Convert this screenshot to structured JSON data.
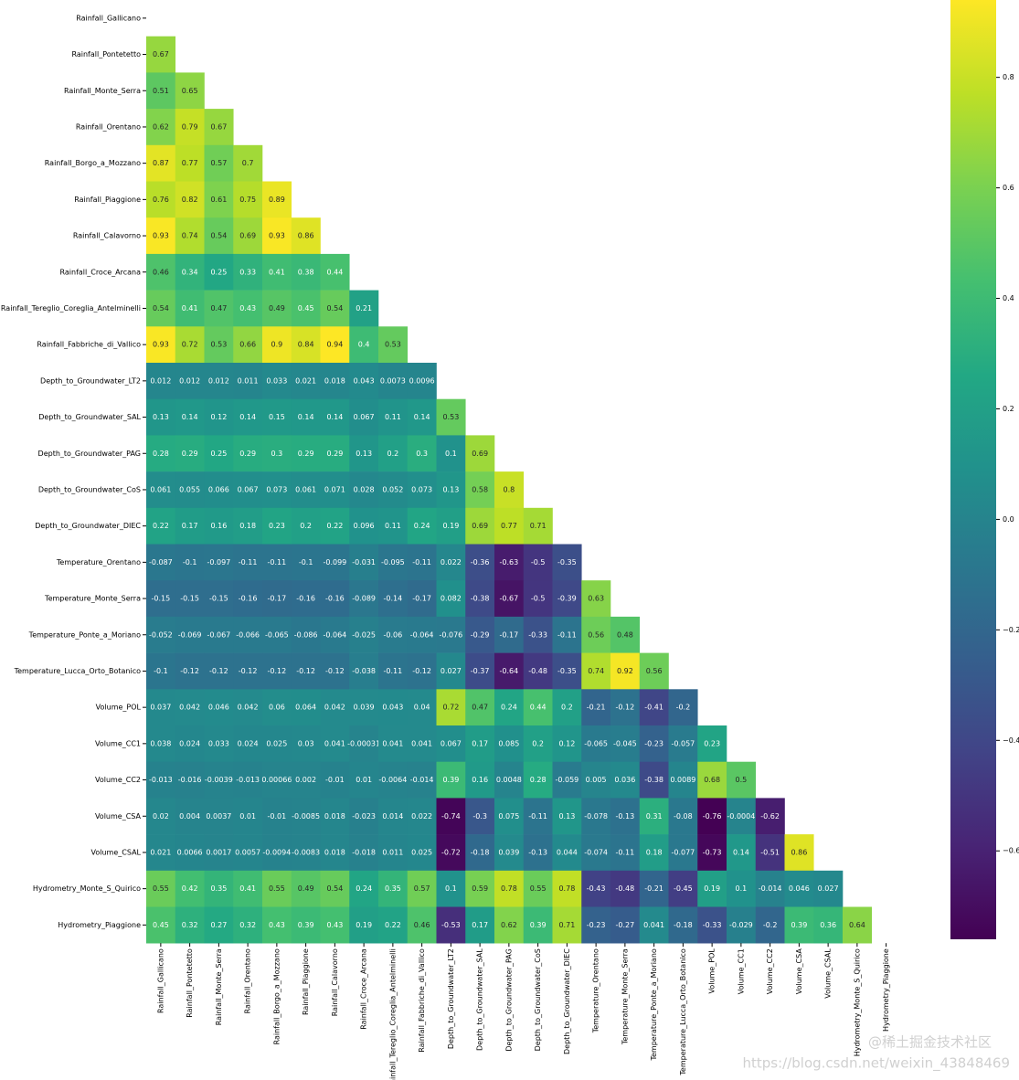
{
  "chart_data": {
    "type": "heatmap",
    "labels": [
      "Rainfall_Gallicano",
      "Rainfall_Pontetetto",
      "Rainfall_Monte_Serra",
      "Rainfall_Orentano",
      "Rainfall_Borgo_a_Mozzano",
      "Rainfall_Piaggione",
      "Rainfall_Calavorno",
      "Rainfall_Croce_Arcana",
      "Rainfall_Tereglio_Coreglia_Antelminelli",
      "Rainfall_Fabbriche_di_Vallico",
      "Depth_to_Groundwater_LT2",
      "Depth_to_Groundwater_SAL",
      "Depth_to_Groundwater_PAG",
      "Depth_to_Groundwater_CoS",
      "Depth_to_Groundwater_DIEC",
      "Temperature_Orentano",
      "Temperature_Monte_Serra",
      "Temperature_Ponte_a_Moriano",
      "Temperature_Lucca_Orto_Botanico",
      "Volume_POL",
      "Volume_CC1",
      "Volume_CC2",
      "Volume_CSA",
      "Volume_CSAL",
      "Hydrometry_Monte_S_Quirico",
      "Hydrometry_Piaggione"
    ],
    "matrix": [
      [],
      [
        0.67
      ],
      [
        0.51,
        0.65
      ],
      [
        0.62,
        0.79,
        0.67
      ],
      [
        0.87,
        0.77,
        0.57,
        0.7
      ],
      [
        0.76,
        0.82,
        0.61,
        0.75,
        0.89
      ],
      [
        0.93,
        0.74,
        0.54,
        0.69,
        0.93,
        0.86
      ],
      [
        0.46,
        0.34,
        0.25,
        0.33,
        0.41,
        0.38,
        0.44
      ],
      [
        0.54,
        0.41,
        0.47,
        0.43,
        0.49,
        0.45,
        0.54,
        0.21
      ],
      [
        0.93,
        0.72,
        0.53,
        0.66,
        0.9,
        0.84,
        0.94,
        0.4,
        0.53
      ],
      [
        0.012,
        0.012,
        0.012,
        0.011,
        0.033,
        0.021,
        0.018,
        0.043,
        0.0073,
        0.0096
      ],
      [
        0.13,
        0.14,
        0.12,
        0.14,
        0.15,
        0.14,
        0.14,
        0.067,
        0.11,
        0.14,
        0.53
      ],
      [
        0.28,
        0.29,
        0.25,
        0.29,
        0.3,
        0.29,
        0.29,
        0.13,
        0.2,
        0.3,
        0.1,
        0.69
      ],
      [
        0.061,
        0.055,
        0.066,
        0.067,
        0.073,
        0.061,
        0.071,
        0.028,
        0.052,
        0.073,
        0.13,
        0.58,
        0.8
      ],
      [
        0.22,
        0.17,
        0.16,
        0.18,
        0.23,
        0.2,
        0.22,
        0.096,
        0.11,
        0.24,
        0.19,
        0.69,
        0.77,
        0.71
      ],
      [
        -0.087,
        -0.1,
        -0.097,
        -0.11,
        -0.11,
        -0.1,
        -0.099,
        -0.031,
        -0.095,
        -0.11,
        0.022,
        -0.36,
        -0.63,
        -0.5,
        -0.35
      ],
      [
        -0.15,
        -0.15,
        -0.15,
        -0.16,
        -0.17,
        -0.16,
        -0.16,
        -0.089,
        -0.14,
        -0.17,
        0.082,
        -0.38,
        -0.67,
        -0.5,
        -0.39,
        0.63
      ],
      [
        -0.052,
        -0.069,
        -0.067,
        -0.066,
        -0.065,
        -0.086,
        -0.064,
        -0.025,
        -0.06,
        -0.064,
        -0.076,
        -0.29,
        -0.17,
        -0.33,
        -0.11,
        0.56,
        0.48
      ],
      [
        -0.1,
        -0.12,
        -0.12,
        -0.12,
        -0.12,
        -0.12,
        -0.12,
        -0.038,
        -0.11,
        -0.12,
        0.027,
        -0.37,
        -0.64,
        -0.48,
        -0.35,
        0.74,
        0.92,
        0.56
      ],
      [
        0.037,
        0.042,
        0.046,
        0.042,
        0.06,
        0.064,
        0.042,
        0.039,
        0.043,
        0.04,
        0.72,
        0.47,
        0.24,
        0.44,
        0.2,
        -0.21,
        -0.12,
        -0.41,
        -0.2
      ],
      [
        0.038,
        0.024,
        0.033,
        0.024,
        0.025,
        0.03,
        0.041,
        -0.00031,
        0.041,
        0.041,
        0.067,
        0.17,
        0.085,
        0.2,
        0.12,
        -0.065,
        -0.045,
        -0.23,
        -0.057,
        0.23
      ],
      [
        -0.013,
        -0.016,
        -0.0039,
        -0.013,
        0.00066,
        0.002,
        -0.01,
        0.01,
        -0.0064,
        -0.014,
        0.39,
        0.16,
        0.0048,
        0.28,
        -0.059,
        0.005,
        0.036,
        -0.38,
        0.0089,
        0.68,
        0.5
      ],
      [
        0.02,
        0.004,
        0.0037,
        0.01,
        -0.01,
        -0.0085,
        0.018,
        -0.023,
        0.014,
        0.022,
        -0.74,
        -0.3,
        0.075,
        -0.11,
        0.13,
        -0.078,
        -0.13,
        0.31,
        -0.08,
        -0.76,
        -0.0004,
        -0.62
      ],
      [
        0.021,
        0.0066,
        0.0017,
        0.0057,
        -0.0094,
        -0.0083,
        0.018,
        -0.018,
        0.011,
        0.025,
        -0.72,
        -0.18,
        0.039,
        -0.13,
        0.044,
        -0.074,
        -0.11,
        0.18,
        -0.077,
        -0.73,
        0.14,
        -0.51,
        0.86
      ],
      [
        0.55,
        0.42,
        0.35,
        0.41,
        0.55,
        0.49,
        0.54,
        0.24,
        0.35,
        0.57,
        0.1,
        0.59,
        0.78,
        0.55,
        0.78,
        -0.43,
        -0.48,
        -0.21,
        -0.45,
        0.19,
        0.1,
        -0.014,
        0.046,
        0.027
      ],
      [
        0.45,
        0.32,
        0.27,
        0.32,
        0.43,
        0.39,
        0.43,
        0.19,
        0.22,
        0.46,
        -0.53,
        0.17,
        0.62,
        0.39,
        0.71,
        -0.23,
        -0.27,
        0.041,
        -0.18,
        -0.33,
        -0.029,
        -0.2,
        0.39,
        0.36,
        0.64
      ]
    ],
    "colormap": "viridis",
    "clim": [
      -0.76,
      0.94
    ],
    "cticks": [
      0.8,
      0.6,
      0.4,
      0.2,
      {
        "value": 0,
        "label": "0.0"
      },
      {
        "value": -0.2,
        "label": "−0.2"
      },
      {
        "value": -0.4,
        "label": "−0.4"
      },
      {
        "value": -0.6,
        "label": "−0.6"
      }
    ],
    "watermarks": [
      "@稀土掘金技术社区",
      "https://blog.csdn.net/weixin_43848469"
    ]
  }
}
